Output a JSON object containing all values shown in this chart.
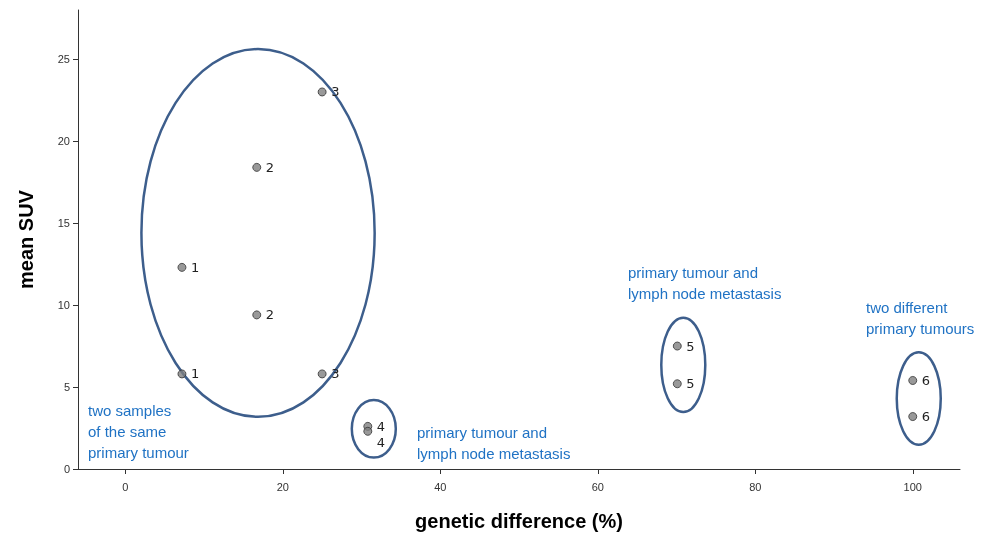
{
  "chart_data": {
    "type": "scatter",
    "xlabel": "genetic difference (%)",
    "ylabel": "mean SUV",
    "xlim": [
      -6,
      106
    ],
    "xticks": [
      0,
      20,
      40,
      60,
      80,
      100
    ],
    "ylim": [
      0,
      28
    ],
    "yticks": [
      0,
      5,
      10,
      15,
      20,
      25
    ],
    "grid": false,
    "marker": "circle",
    "series": [
      {
        "color": "#808080",
        "x": [
          7.2,
          7.2,
          16.7,
          16.7,
          25.0,
          25.0
        ],
        "values": [
          12.3,
          5.8,
          18.4,
          9.4,
          23.0,
          5.8
        ]
      },
      {
        "color": "#808080",
        "x": [
          30.8,
          30.8
        ],
        "values": [
          2.6,
          2.3
        ]
      },
      {
        "color": "#808080",
        "x": [
          70.1,
          70.1
        ],
        "values": [
          7.5,
          5.2
        ]
      },
      {
        "color": "#808080",
        "x": [
          100,
          100
        ],
        "values": [
          5.4,
          3.2
        ]
      }
    ],
    "annotations": [
      "two samples\nof the same\nprimary tumour",
      "primary tumour and\nlymph node metastasis",
      "primary tumour and\nlymph node metastasis",
      "two different\nprimary tumours",
      {
        "text": "1",
        "x": 7.2,
        "y": 12.3
      },
      {
        "text": "1",
        "x": 7.2,
        "y": 5.8
      },
      {
        "text": "2",
        "x": 16.7,
        "y": 18.4
      },
      {
        "text": "2",
        "x": 16.7,
        "y": 9.4
      },
      {
        "text": "3",
        "x": 25.0,
        "y": 23.0
      },
      {
        "text": "3",
        "x": 25.0,
        "y": 5.8
      },
      {
        "text": "4",
        "x": 30.8,
        "y": 2.6
      },
      {
        "text": "4",
        "x": 30.8,
        "y": 2.3
      },
      {
        "text": "5",
        "x": 70.1,
        "y": 7.5
      },
      {
        "text": "5",
        "x": 70.1,
        "y": 5.2
      },
      {
        "text": "6",
        "x": 100,
        "y": 5.4
      },
      {
        "text": "6",
        "x": 100,
        "y": 3.2
      }
    ]
  }
}
